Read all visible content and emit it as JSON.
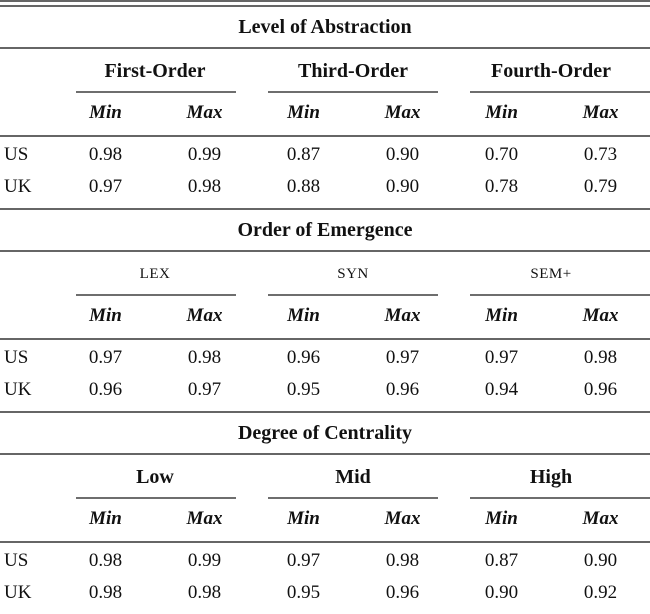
{
  "table": {
    "labels": {
      "min": "Min",
      "max": "Max"
    },
    "sections": [
      {
        "title": "Level of Abstraction",
        "groups": [
          "First-Order",
          "Third-Order",
          "Fourth-Order"
        ],
        "rows": [
          {
            "label": "US",
            "values": [
              "0.98",
              "0.99",
              "0.87",
              "0.90",
              "0.70",
              "0.73"
            ]
          },
          {
            "label": "UK",
            "values": [
              "0.97",
              "0.98",
              "0.88",
              "0.90",
              "0.78",
              "0.79"
            ]
          }
        ]
      },
      {
        "title": "Order of Emergence",
        "groups": [
          "LEX",
          "SYN",
          "SEM+"
        ],
        "rows": [
          {
            "label": "US",
            "values": [
              "0.97",
              "0.98",
              "0.96",
              "0.97",
              "0.97",
              "0.98"
            ]
          },
          {
            "label": "UK",
            "values": [
              "0.96",
              "0.97",
              "0.95",
              "0.96",
              "0.94",
              "0.96"
            ]
          }
        ]
      },
      {
        "title": "Degree of Centrality",
        "groups": [
          "Low",
          "Mid",
          "High"
        ],
        "rows": [
          {
            "label": "US",
            "values": [
              "0.98",
              "0.99",
              "0.97",
              "0.98",
              "0.87",
              "0.90"
            ]
          },
          {
            "label": "UK",
            "values": [
              "0.98",
              "0.98",
              "0.95",
              "0.96",
              "0.90",
              "0.92"
            ]
          }
        ]
      }
    ]
  },
  "colors": {
    "rule": "#666666",
    "text": "#111111",
    "background": "#ffffff"
  },
  "chart_data": {
    "type": "table",
    "title": "",
    "row_labels": [
      "US",
      "UK"
    ],
    "sections": [
      {
        "section": "Level of Abstraction",
        "columns": [
          "First-Order Min",
          "First-Order Max",
          "Third-Order Min",
          "Third-Order Max",
          "Fourth-Order Min",
          "Fourth-Order Max"
        ],
        "US": [
          0.98,
          0.99,
          0.87,
          0.9,
          0.7,
          0.73
        ],
        "UK": [
          0.97,
          0.98,
          0.88,
          0.9,
          0.78,
          0.79
        ]
      },
      {
        "section": "Order of Emergence",
        "columns": [
          "LEX Min",
          "LEX Max",
          "SYN Min",
          "SYN Max",
          "SEM+ Min",
          "SEM+ Max"
        ],
        "US": [
          0.97,
          0.98,
          0.96,
          0.97,
          0.97,
          0.98
        ],
        "UK": [
          0.96,
          0.97,
          0.95,
          0.96,
          0.94,
          0.96
        ]
      },
      {
        "section": "Degree of Centrality",
        "columns": [
          "Low Min",
          "Low Max",
          "Mid Min",
          "Mid Max",
          "High Min",
          "High Max"
        ],
        "US": [
          0.98,
          0.99,
          0.97,
          0.98,
          0.87,
          0.9
        ],
        "UK": [
          0.98,
          0.98,
          0.95,
          0.96,
          0.9,
          0.92
        ]
      }
    ]
  }
}
